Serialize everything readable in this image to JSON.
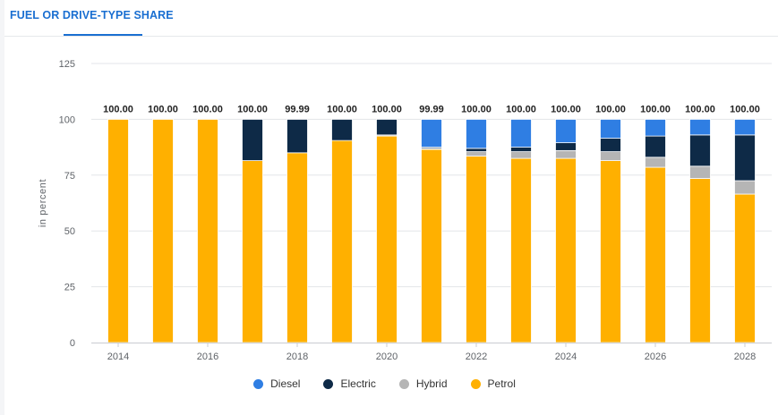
{
  "header": {
    "tab_label": "FUEL OR DRIVE-TYPE SHARE"
  },
  "chart_data": {
    "type": "bar",
    "stacked": true,
    "x": [
      2014,
      2015,
      2016,
      2017,
      2018,
      2019,
      2020,
      2021,
      2022,
      2023,
      2024,
      2025,
      2026,
      2027,
      2028
    ],
    "x_tick_labels": [
      "2014",
      "2016",
      "2018",
      "2020",
      "2022",
      "2024",
      "2026",
      "2028"
    ],
    "x_tick_values": [
      2014,
      2016,
      2018,
      2020,
      2022,
      2024,
      2026,
      2028
    ],
    "ylabel": "in percent",
    "ylim": [
      0,
      125
    ],
    "y_ticks": [
      0,
      25,
      50,
      75,
      100,
      125
    ],
    "grid": true,
    "legend_position": "bottom",
    "totals": [
      "100.00",
      "100.00",
      "100.00",
      "100.00",
      "99.99",
      "100.00",
      "100.00",
      "99.99",
      "100.00",
      "100.00",
      "100.00",
      "100.00",
      "100.00",
      "100.00",
      "100.00"
    ],
    "series": [
      {
        "name": "Petrol",
        "color": "#ffb000",
        "values": [
          100,
          100,
          100,
          81.5,
          85.0,
          90.5,
          92.5,
          86.5,
          83.5,
          82.5,
          82.5,
          81.5,
          78.5,
          73.5,
          66.5
        ]
      },
      {
        "name": "Hybrid",
        "color": "#b5b5b5",
        "values": [
          0,
          0,
          0,
          0,
          0,
          0,
          0.5,
          0.5,
          2.0,
          3.0,
          3.5,
          4.0,
          4.5,
          5.5,
          6.0
        ]
      },
      {
        "name": "Electric",
        "color": "#0e2a47",
        "values": [
          0,
          0,
          0,
          18.5,
          14.99,
          9.5,
          7.0,
          0.5,
          1.5,
          2.0,
          3.5,
          6.0,
          9.5,
          14.0,
          20.5
        ]
      },
      {
        "name": "Diesel",
        "color": "#2f7ee3",
        "values": [
          0,
          0,
          0,
          0,
          0,
          0,
          0,
          12.49,
          13.0,
          12.5,
          10.5,
          8.5,
          7.5,
          7.0,
          7.0
        ]
      }
    ],
    "legend_order": [
      "Diesel",
      "Electric",
      "Hybrid",
      "Petrol"
    ]
  }
}
